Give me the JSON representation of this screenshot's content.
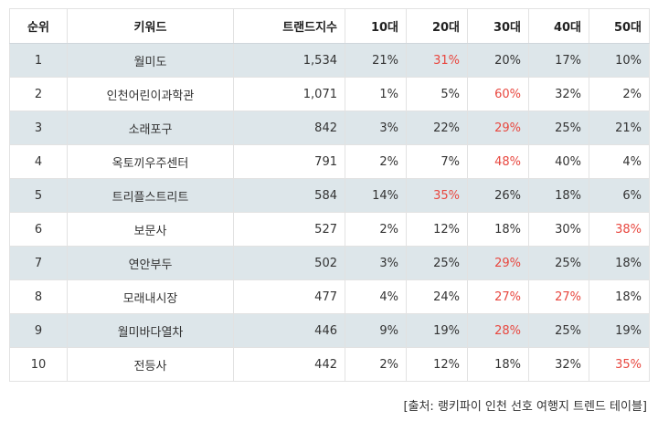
{
  "table": {
    "headers": [
      "순위",
      "키워드",
      "트랜드지수",
      "10대",
      "20대",
      "30대",
      "40대",
      "50대"
    ],
    "rows": [
      {
        "rank": "1",
        "keyword": "월미도",
        "index": "1,534",
        "a10": "21%",
        "a20": "31%",
        "a30": "20%",
        "a40": "17%",
        "a50": "10%",
        "hot": [
          "a20"
        ]
      },
      {
        "rank": "2",
        "keyword": "인천어린이과학관",
        "index": "1,071",
        "a10": "1%",
        "a20": "5%",
        "a30": "60%",
        "a40": "32%",
        "a50": "2%",
        "hot": [
          "a30"
        ]
      },
      {
        "rank": "3",
        "keyword": "소래포구",
        "index": "842",
        "a10": "3%",
        "a20": "22%",
        "a30": "29%",
        "a40": "25%",
        "a50": "21%",
        "hot": [
          "a30"
        ]
      },
      {
        "rank": "4",
        "keyword": "옥토끼우주센터",
        "index": "791",
        "a10": "2%",
        "a20": "7%",
        "a30": "48%",
        "a40": "40%",
        "a50": "4%",
        "hot": [
          "a30"
        ]
      },
      {
        "rank": "5",
        "keyword": "트리플스트리트",
        "index": "584",
        "a10": "14%",
        "a20": "35%",
        "a30": "26%",
        "a40": "18%",
        "a50": "6%",
        "hot": [
          "a20"
        ]
      },
      {
        "rank": "6",
        "keyword": "보문사",
        "index": "527",
        "a10": "2%",
        "a20": "12%",
        "a30": "18%",
        "a40": "30%",
        "a50": "38%",
        "hot": [
          "a50"
        ]
      },
      {
        "rank": "7",
        "keyword": "연안부두",
        "index": "502",
        "a10": "3%",
        "a20": "25%",
        "a30": "29%",
        "a40": "25%",
        "a50": "18%",
        "hot": [
          "a30"
        ]
      },
      {
        "rank": "8",
        "keyword": "모래내시장",
        "index": "477",
        "a10": "4%",
        "a20": "24%",
        "a30": "27%",
        "a40": "27%",
        "a50": "18%",
        "hot": [
          "a30",
          "a40"
        ]
      },
      {
        "rank": "9",
        "keyword": "월미바다열차",
        "index": "446",
        "a10": "9%",
        "a20": "19%",
        "a30": "28%",
        "a40": "25%",
        "a50": "19%",
        "hot": [
          "a30"
        ]
      },
      {
        "rank": "10",
        "keyword": "전등사",
        "index": "442",
        "a10": "2%",
        "a20": "12%",
        "a30": "18%",
        "a40": "32%",
        "a50": "35%",
        "hot": [
          "a50"
        ]
      }
    ]
  },
  "source_text": "[출처: 랭키파이 인천 선호 여행지 트렌드 테이블]",
  "colors": {
    "row_shade": "#dde6ea",
    "highlight": "#e8473f",
    "border": "#e2e2e2"
  }
}
